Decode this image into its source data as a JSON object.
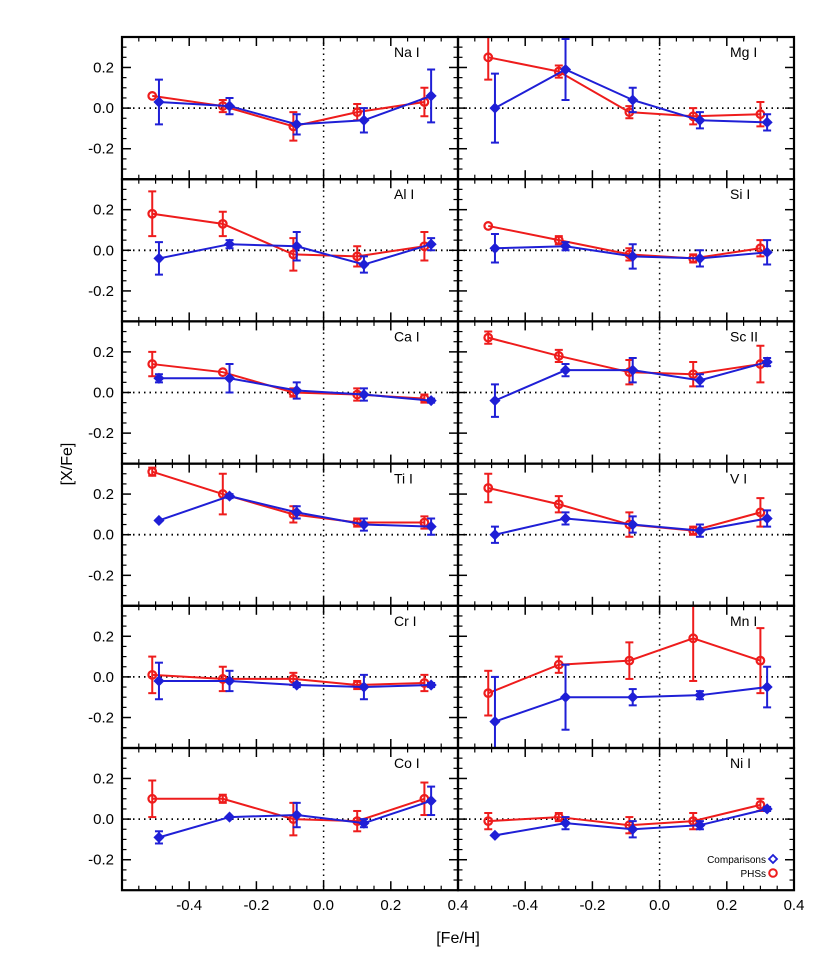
{
  "chart_data": {
    "type": "scatter",
    "xlabel": "[Fe/H]",
    "ylabel": "[X/Fe]",
    "xlim": [
      -0.6,
      0.4
    ],
    "ylim": [
      -0.35,
      0.35
    ],
    "x_ticks": [
      "-0.4",
      "-0.2",
      "0.0",
      "0.2",
      "0.4"
    ],
    "x_tick_values": [
      -0.4,
      -0.2,
      0.0,
      0.2,
      0.4
    ],
    "y_ticks": [
      "0.2",
      "0.0",
      "-0.2"
    ],
    "y_tick_values": [
      0.2,
      0.0,
      -0.2
    ],
    "reference_lines": {
      "x": 0.0,
      "y": 0.0,
      "style": "dotted"
    },
    "grid": false,
    "layout": {
      "rows": 6,
      "cols": 2
    },
    "legend": {
      "placement": "bottom-right of last panel",
      "entries": [
        {
          "label": "Comparisons",
          "color": "#1f1fd6",
          "marker": "diamond"
        },
        {
          "label": "PHSs",
          "color": "#ee1c1c",
          "marker": "circle"
        }
      ]
    },
    "colors": {
      "comparisons": "#1f1fd6",
      "phs": "#ee1c1c"
    },
    "panels": [
      {
        "label": "Na I",
        "comparisons": {
          "x": [
            -0.49,
            -0.28,
            -0.08,
            0.12,
            0.32
          ],
          "y": [
            0.03,
            0.01,
            -0.08,
            -0.06,
            0.06
          ],
          "err": [
            0.11,
            0.04,
            0.05,
            0.06,
            0.13
          ]
        },
        "phs": {
          "x": [
            -0.51,
            -0.3,
            -0.09,
            0.1,
            0.3
          ],
          "y": [
            0.06,
            0.01,
            -0.09,
            -0.02,
            0.03
          ],
          "err": [
            0.0,
            0.03,
            0.07,
            0.04,
            0.07
          ]
        }
      },
      {
        "label": "Mg I",
        "comparisons": {
          "x": [
            -0.49,
            -0.28,
            -0.08,
            0.12,
            0.32
          ],
          "y": [
            0.0,
            0.19,
            0.04,
            -0.06,
            -0.07
          ],
          "err": [
            0.17,
            0.15,
            0.06,
            0.04,
            0.04
          ]
        },
        "phs": {
          "x": [
            -0.51,
            -0.3,
            -0.09,
            0.1,
            0.3
          ],
          "y": [
            0.25,
            0.18,
            -0.02,
            -0.04,
            -0.03
          ],
          "err": [
            0.11,
            0.03,
            0.03,
            0.04,
            0.06
          ]
        }
      },
      {
        "label": "Al I",
        "comparisons": {
          "x": [
            -0.49,
            -0.28,
            -0.08,
            0.12,
            0.32
          ],
          "y": [
            -0.04,
            0.03,
            0.02,
            -0.07,
            0.03
          ],
          "err": [
            0.08,
            0.02,
            0.07,
            0.04,
            0.03
          ]
        },
        "phs": {
          "x": [
            -0.51,
            -0.3,
            -0.09,
            0.1,
            0.3
          ],
          "y": [
            0.18,
            0.13,
            -0.02,
            -0.03,
            0.02
          ],
          "err": [
            0.11,
            0.06,
            0.08,
            0.05,
            0.07
          ]
        }
      },
      {
        "label": "Si I",
        "comparisons": {
          "x": [
            -0.49,
            -0.28,
            -0.08,
            0.12,
            0.32
          ],
          "y": [
            0.01,
            0.02,
            -0.03,
            -0.04,
            -0.01
          ],
          "err": [
            0.07,
            0.02,
            0.06,
            0.04,
            0.06
          ]
        },
        "phs": {
          "x": [
            -0.51,
            -0.3,
            -0.09,
            0.1,
            0.3
          ],
          "y": [
            0.12,
            0.05,
            -0.02,
            -0.04,
            0.01
          ],
          "err": [
            0.0,
            0.02,
            0.03,
            0.02,
            0.04
          ]
        }
      },
      {
        "label": "Ca I",
        "comparisons": {
          "x": [
            -0.49,
            -0.28,
            -0.08,
            0.12,
            0.32
          ],
          "y": [
            0.07,
            0.07,
            0.01,
            -0.01,
            -0.04
          ],
          "err": [
            0.02,
            0.07,
            0.04,
            0.03,
            0.01
          ]
        },
        "phs": {
          "x": [
            -0.51,
            -0.3,
            -0.09,
            0.1,
            0.3
          ],
          "y": [
            0.14,
            0.1,
            0.0,
            -0.01,
            -0.03
          ],
          "err": [
            0.06,
            0.0,
            0.02,
            0.03,
            0.02
          ]
        }
      },
      {
        "label": "Sc II",
        "comparisons": {
          "x": [
            -0.49,
            -0.28,
            -0.08,
            0.12,
            0.32
          ],
          "y": [
            -0.04,
            0.11,
            0.11,
            0.06,
            0.15
          ],
          "err": [
            0.08,
            0.03,
            0.06,
            0.03,
            0.02
          ]
        },
        "phs": {
          "x": [
            -0.51,
            -0.3,
            -0.09,
            0.1,
            0.3
          ],
          "y": [
            0.27,
            0.18,
            0.1,
            0.09,
            0.14
          ],
          "err": [
            0.03,
            0.03,
            0.06,
            0.06,
            0.09
          ]
        }
      },
      {
        "label": "Ti I",
        "comparisons": {
          "x": [
            -0.49,
            -0.28,
            -0.08,
            0.12,
            0.32
          ],
          "y": [
            0.07,
            0.19,
            0.11,
            0.05,
            0.04
          ],
          "err": [
            0.0,
            0.01,
            0.03,
            0.03,
            0.04
          ]
        },
        "phs": {
          "x": [
            -0.51,
            -0.3,
            -0.09,
            0.1,
            0.3
          ],
          "y": [
            0.31,
            0.2,
            0.1,
            0.06,
            0.06
          ],
          "err": [
            0.02,
            0.1,
            0.04,
            0.02,
            0.03
          ]
        }
      },
      {
        "label": "V I",
        "comparisons": {
          "x": [
            -0.49,
            -0.28,
            -0.08,
            0.12,
            0.32
          ],
          "y": [
            0.0,
            0.08,
            0.05,
            0.02,
            0.08
          ],
          "err": [
            0.04,
            0.03,
            0.04,
            0.03,
            0.04
          ]
        },
        "phs": {
          "x": [
            -0.51,
            -0.3,
            -0.09,
            0.1,
            0.3
          ],
          "y": [
            0.23,
            0.15,
            0.05,
            0.02,
            0.11
          ],
          "err": [
            0.07,
            0.04,
            0.06,
            0.02,
            0.07
          ]
        }
      },
      {
        "label": "Cr I",
        "comparisons": {
          "x": [
            -0.49,
            -0.28,
            -0.08,
            0.12,
            0.32
          ],
          "y": [
            -0.02,
            -0.02,
            -0.04,
            -0.05,
            -0.04
          ],
          "err": [
            0.09,
            0.05,
            0.01,
            0.06,
            0.01
          ]
        },
        "phs": {
          "x": [
            -0.51,
            -0.3,
            -0.09,
            0.1,
            0.3
          ],
          "y": [
            0.01,
            -0.01,
            -0.01,
            -0.04,
            -0.03
          ],
          "err": [
            0.09,
            0.06,
            0.03,
            0.02,
            0.04
          ]
        }
      },
      {
        "label": "Mn I",
        "comparisons": {
          "x": [
            -0.49,
            -0.28,
            -0.08,
            0.12,
            0.32
          ],
          "y": [
            -0.22,
            -0.1,
            -0.1,
            -0.09,
            -0.05
          ],
          "err": [
            0.22,
            0.16,
            0.04,
            0.02,
            0.1
          ]
        },
        "phs": {
          "x": [
            -0.51,
            -0.3,
            -0.09,
            0.1,
            0.3
          ],
          "y": [
            -0.08,
            0.06,
            0.08,
            0.19,
            0.08
          ],
          "err": [
            0.11,
            0.04,
            0.09,
            0.21,
            0.16
          ]
        }
      },
      {
        "label": "Co I",
        "comparisons": {
          "x": [
            -0.49,
            -0.28,
            -0.08,
            0.12,
            0.32
          ],
          "y": [
            -0.09,
            0.01,
            0.02,
            -0.02,
            0.09
          ],
          "err": [
            0.03,
            0.0,
            0.06,
            0.02,
            0.07
          ]
        },
        "phs": {
          "x": [
            -0.51,
            -0.3,
            -0.09,
            0.1,
            0.3
          ],
          "y": [
            0.1,
            0.1,
            0.0,
            -0.01,
            0.1
          ],
          "err": [
            0.09,
            0.02,
            0.08,
            0.05,
            0.08
          ]
        }
      },
      {
        "label": "Ni I",
        "comparisons": {
          "x": [
            -0.49,
            -0.28,
            -0.08,
            0.12,
            0.32
          ],
          "y": [
            -0.08,
            -0.02,
            -0.05,
            -0.03,
            0.05
          ],
          "err": [
            0.0,
            0.03,
            0.04,
            0.02,
            0.01
          ]
        },
        "phs": {
          "x": [
            -0.51,
            -0.3,
            -0.09,
            0.1,
            0.3
          ],
          "y": [
            -0.01,
            0.01,
            -0.03,
            -0.01,
            0.07
          ],
          "err": [
            0.04,
            0.02,
            0.04,
            0.04,
            0.03
          ]
        }
      }
    ]
  }
}
